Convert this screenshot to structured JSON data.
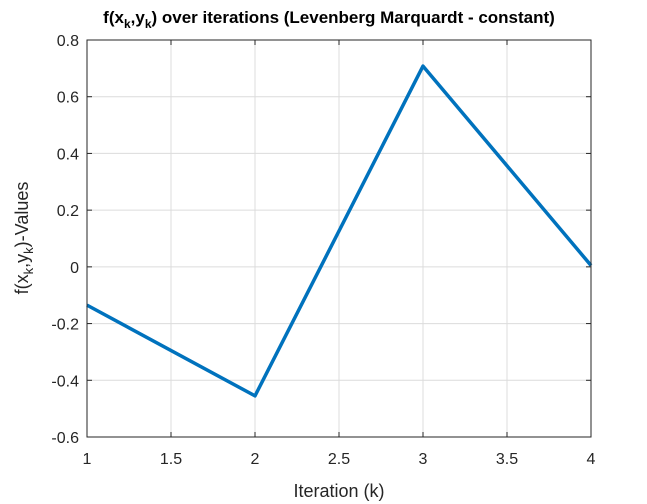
{
  "chart_data": {
    "type": "line",
    "title": "f(x_k,y_k) over iterations (Levenberg Marquardt - constant)",
    "title_parts": {
      "p1": "f(x",
      "s1": "k",
      "p2": ",y",
      "s2": "k",
      "p3": ") over iterations (Levenberg Marquardt - constant)"
    },
    "xlabel": "Iteration (k)",
    "ylabel": "f(x_k,y_k)-Values",
    "ylabel_parts": {
      "p1": "f(x",
      "s1": "k",
      "p2": ",y",
      "s2": "k",
      "p3": ")-Values"
    },
    "xlim": [
      1,
      4
    ],
    "ylim": [
      -0.6,
      0.8
    ],
    "xticks": [
      1,
      1.5,
      2,
      2.5,
      3,
      3.5,
      4
    ],
    "xtick_labels": [
      "1",
      "1.5",
      "2",
      "2.5",
      "3",
      "3.5",
      "4"
    ],
    "yticks": [
      -0.6,
      -0.4,
      -0.2,
      0,
      0.2,
      0.4,
      0.6,
      0.8
    ],
    "ytick_labels": [
      "-0.6",
      "-0.4",
      "-0.2",
      "0",
      "0.2",
      "0.4",
      "0.6",
      "0.8"
    ],
    "grid": true,
    "series": [
      {
        "x": [
          1,
          2,
          3,
          4
        ],
        "y": [
          -0.135,
          -0.455,
          0.708,
          0.005
        ],
        "color": "#0072BD"
      }
    ]
  }
}
